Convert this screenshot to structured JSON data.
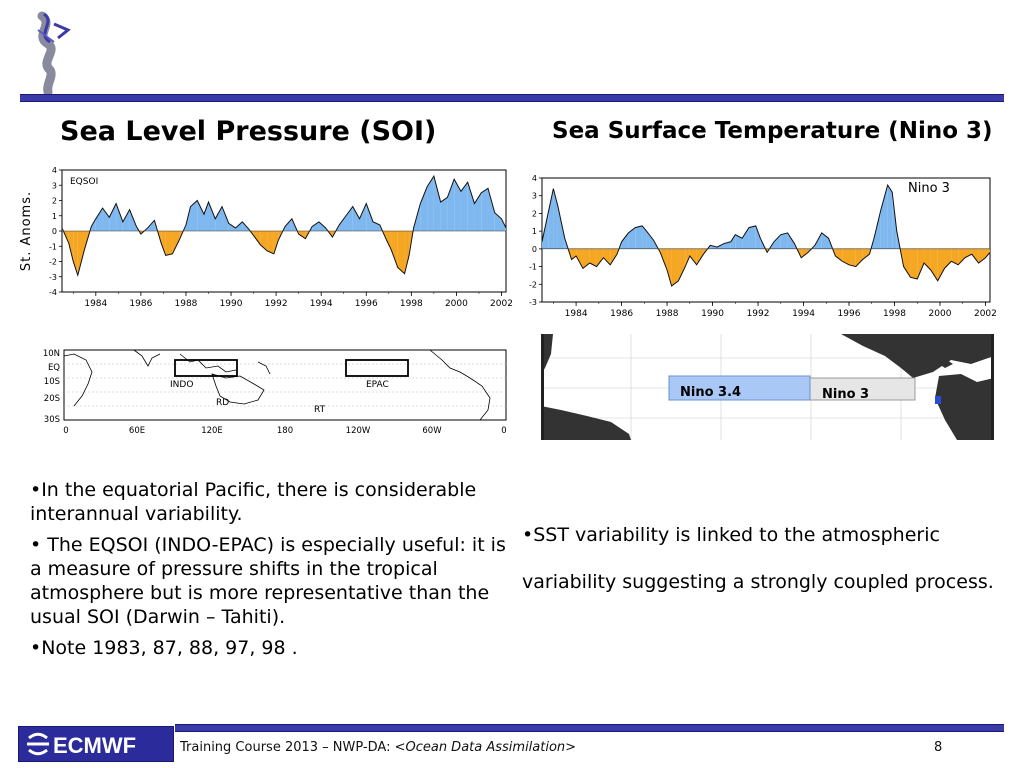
{
  "slide": {
    "title_left": "Sea Level Pressure (SOI)",
    "title_right": "Sea Surface Temperature (Nino 3)",
    "footer_text_prefix": "Training Course 2013 – NWP-DA: <",
    "footer_text_italic": "Ocean Data Assimilation",
    "footer_text_suffix": ">",
    "page_number": "8",
    "logo_text": "ECMWF"
  },
  "bullets_left": [
    "•In the equatorial Pacific, there is considerable interannual variability.",
    "• The EQSOI (INDO-EPAC) is especially useful:  it is a measure of pressure shifts in the tropical atmosphere but is more representative than the usual SOI (Darwin – Tahiti).",
    "•Note 1983, 87, 88, 97, 98 ."
  ],
  "bullets_right": [
    "•SST variability is linked to the atmospheric variability suggesting a strongly coupled process."
  ],
  "colors": {
    "positive_fill": "#7fb8ef",
    "negative_fill": "#f5a623",
    "rule": "#3a3aa8"
  },
  "chart_data": [
    {
      "type": "area",
      "label": "EQSOI",
      "ylabel": "St. Anoms.",
      "xlim": [
        1982.5,
        2002.2
      ],
      "ylim": [
        -4,
        4
      ],
      "x_ticks": [
        "1984",
        "1986",
        "1988",
        "1990",
        "1992",
        "1994",
        "1996",
        "1998",
        "2000",
        "2002"
      ],
      "y_ticks": [
        "4",
        "3",
        "2",
        "1",
        "0",
        "-1",
        "-2",
        "-3",
        "-4"
      ],
      "x": [
        1982.5,
        1982.8,
        1983.0,
        1983.2,
        1983.5,
        1983.8,
        1984.0,
        1984.3,
        1984.6,
        1984.9,
        1985.2,
        1985.5,
        1985.8,
        1986.0,
        1986.3,
        1986.6,
        1986.9,
        1987.1,
        1987.4,
        1987.7,
        1988.0,
        1988.2,
        1988.5,
        1988.8,
        1989.0,
        1989.3,
        1989.6,
        1989.9,
        1990.2,
        1990.5,
        1990.8,
        1991.0,
        1991.3,
        1991.6,
        1991.9,
        1992.1,
        1992.4,
        1992.7,
        1993.0,
        1993.3,
        1993.6,
        1993.9,
        1994.2,
        1994.5,
        1994.8,
        1995.1,
        1995.4,
        1995.7,
        1996.0,
        1996.3,
        1996.6,
        1996.9,
        1997.1,
        1997.4,
        1997.7,
        1997.9,
        1998.1,
        1998.4,
        1998.7,
        1999.0,
        1999.3,
        1999.6,
        1999.9,
        2000.2,
        2000.5,
        2000.8,
        2001.1,
        2001.4,
        2001.7,
        2002.0,
        2002.2
      ],
      "y": [
        0.2,
        -0.8,
        -2.0,
        -2.9,
        -1.2,
        0.3,
        0.8,
        1.5,
        0.9,
        1.8,
        0.6,
        1.4,
        0.3,
        -0.2,
        0.2,
        0.7,
        -0.8,
        -1.6,
        -1.5,
        -0.6,
        0.4,
        1.6,
        2.0,
        1.1,
        1.9,
        0.8,
        1.6,
        0.5,
        0.2,
        0.6,
        0.1,
        -0.3,
        -0.9,
        -1.3,
        -1.5,
        -0.6,
        0.3,
        0.8,
        -0.2,
        -0.5,
        0.3,
        0.6,
        0.2,
        -0.4,
        0.4,
        1.0,
        1.6,
        0.8,
        1.8,
        0.6,
        0.4,
        -0.6,
        -1.2,
        -2.4,
        -2.8,
        -1.6,
        0.2,
        1.8,
        2.9,
        3.6,
        1.9,
        2.2,
        3.4,
        2.6,
        3.2,
        1.8,
        2.5,
        2.8,
        1.2,
        0.8,
        0.2
      ]
    },
    {
      "type": "area",
      "label": "Nino 3",
      "xlim": [
        1982.5,
        2002.2
      ],
      "ylim": [
        -3,
        4
      ],
      "x_ticks": [
        "1984",
        "1986",
        "1988",
        "1990",
        "1992",
        "1994",
        "1996",
        "1998",
        "2000",
        "2002"
      ],
      "y_ticks": [
        "4",
        "3",
        "2",
        "1",
        "0",
        "-1",
        "-2",
        "-3"
      ],
      "x": [
        1982.5,
        1982.8,
        1983.0,
        1983.2,
        1983.5,
        1983.8,
        1984.0,
        1984.3,
        1984.6,
        1984.9,
        1985.2,
        1985.5,
        1985.8,
        1986.0,
        1986.3,
        1986.6,
        1986.9,
        1987.1,
        1987.4,
        1987.7,
        1988.0,
        1988.2,
        1988.5,
        1988.8,
        1989.0,
        1989.3,
        1989.6,
        1989.9,
        1990.2,
        1990.5,
        1990.8,
        1991.0,
        1991.3,
        1991.6,
        1991.9,
        1992.1,
        1992.4,
        1992.7,
        1993.0,
        1993.3,
        1993.6,
        1993.9,
        1994.2,
        1994.5,
        1994.8,
        1995.1,
        1995.4,
        1995.7,
        1996.0,
        1996.3,
        1996.6,
        1996.9,
        1997.1,
        1997.4,
        1997.7,
        1997.9,
        1998.1,
        1998.4,
        1998.7,
        1999.0,
        1999.3,
        1999.6,
        1999.9,
        2000.2,
        2000.5,
        2000.8,
        2001.1,
        2001.4,
        2001.7,
        2002.0,
        2002.2
      ],
      "y": [
        0.4,
        2.2,
        3.4,
        2.4,
        0.6,
        -0.6,
        -0.4,
        -1.1,
        -0.8,
        -1.0,
        -0.5,
        -0.9,
        -0.3,
        0.4,
        0.9,
        1.2,
        1.3,
        1.0,
        0.5,
        -0.2,
        -1.2,
        -2.1,
        -1.8,
        -1.0,
        -0.4,
        -0.9,
        -0.3,
        0.2,
        0.1,
        0.3,
        0.4,
        0.8,
        0.6,
        1.2,
        1.3,
        0.6,
        -0.2,
        0.4,
        0.8,
        0.9,
        0.3,
        -0.5,
        -0.2,
        0.2,
        0.9,
        0.6,
        -0.4,
        -0.7,
        -0.9,
        -1.0,
        -0.6,
        -0.3,
        0.6,
        2.2,
        3.6,
        3.2,
        1.0,
        -1.0,
        -1.6,
        -1.7,
        -0.8,
        -1.2,
        -1.8,
        -1.1,
        -0.7,
        -0.9,
        -0.5,
        -0.3,
        -0.8,
        -0.5,
        -0.2
      ]
    }
  ],
  "map_left": {
    "lat_labels": [
      "10N",
      "EQ",
      "10S",
      "20S",
      "30S"
    ],
    "lon_labels": [
      "0",
      "60E",
      "120E",
      "180",
      "120W",
      "60W",
      "0"
    ],
    "box_labels": [
      "INDO",
      "EPAC",
      "RD",
      "RT"
    ]
  },
  "map_right": {
    "box_labels": [
      "Nino 3.4",
      "Nino 3"
    ]
  }
}
